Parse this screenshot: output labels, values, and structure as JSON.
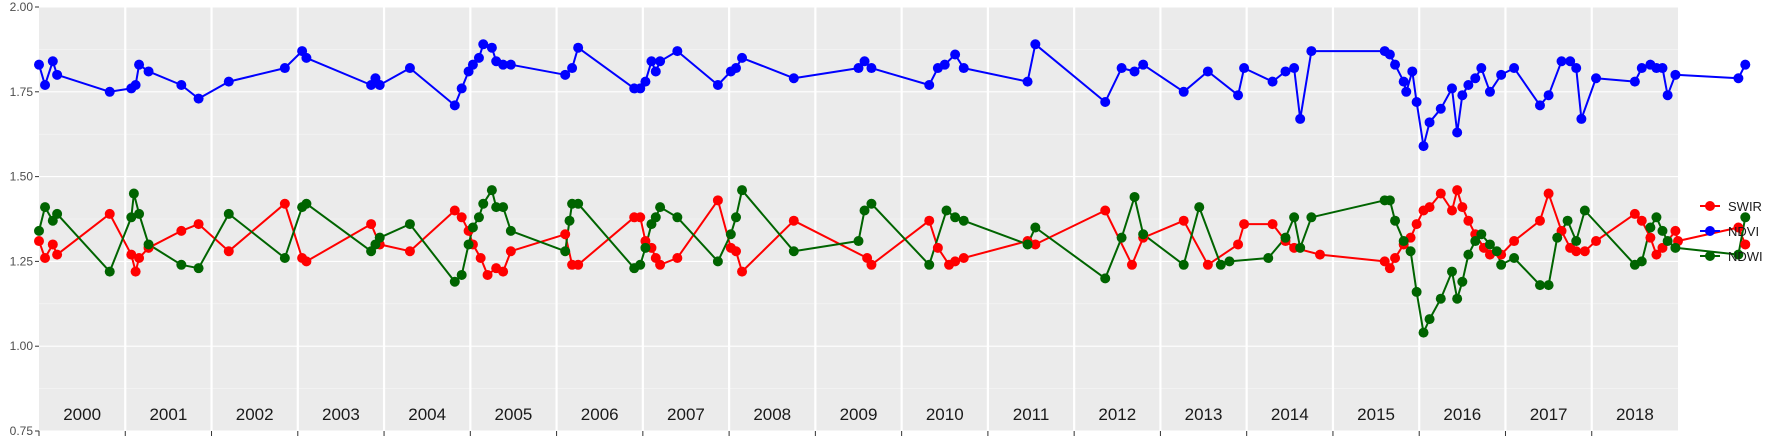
{
  "chart_data": {
    "type": "line",
    "title": "",
    "xlabel": "",
    "ylabel": "",
    "ylim": [
      0.75,
      2.0
    ],
    "yticks": [
      "0.75",
      "1.00",
      "1.25",
      "1.50",
      "1.75",
      "2.00"
    ],
    "xlim": [
      2000,
      2019
    ],
    "years": [
      "2000",
      "2001",
      "2002",
      "2003",
      "2004",
      "2005",
      "2006",
      "2007",
      "2008",
      "2009",
      "2010",
      "2011",
      "2012",
      "2013",
      "2014",
      "2015",
      "2016",
      "2017",
      "2018"
    ],
    "grid": true,
    "legend": "right",
    "series": [
      {
        "name": "SWIR",
        "color": "#ff0000",
        "points": [
          [
            2000.0,
            1.31
          ],
          [
            2000.07,
            1.26
          ],
          [
            2000.16,
            1.3
          ],
          [
            2000.21,
            1.27
          ],
          [
            2000.82,
            1.39
          ],
          [
            2001.07,
            1.27
          ],
          [
            2001.12,
            1.22
          ],
          [
            2001.16,
            1.26
          ],
          [
            2001.27,
            1.29
          ],
          [
            2001.65,
            1.34
          ],
          [
            2001.85,
            1.36
          ],
          [
            2002.2,
            1.28
          ],
          [
            2002.85,
            1.42
          ],
          [
            2003.05,
            1.26
          ],
          [
            2003.1,
            1.25
          ],
          [
            2003.85,
            1.36
          ],
          [
            2003.95,
            1.3
          ],
          [
            2004.3,
            1.28
          ],
          [
            2004.82,
            1.4
          ],
          [
            2004.9,
            1.38
          ],
          [
            2004.98,
            1.34
          ],
          [
            2005.03,
            1.3
          ],
          [
            2005.12,
            1.26
          ],
          [
            2005.2,
            1.21
          ],
          [
            2005.3,
            1.23
          ],
          [
            2005.38,
            1.22
          ],
          [
            2005.47,
            1.28
          ],
          [
            2006.1,
            1.33
          ],
          [
            2006.18,
            1.24
          ],
          [
            2006.25,
            1.24
          ],
          [
            2006.9,
            1.38
          ],
          [
            2006.97,
            1.38
          ],
          [
            2007.03,
            1.31
          ],
          [
            2007.1,
            1.29
          ],
          [
            2007.15,
            1.26
          ],
          [
            2007.2,
            1.24
          ],
          [
            2007.4,
            1.26
          ],
          [
            2007.87,
            1.43
          ],
          [
            2008.02,
            1.29
          ],
          [
            2008.08,
            1.28
          ],
          [
            2008.15,
            1.22
          ],
          [
            2008.75,
            1.37
          ],
          [
            2009.6,
            1.26
          ],
          [
            2009.65,
            1.24
          ],
          [
            2010.32,
            1.37
          ],
          [
            2010.42,
            1.29
          ],
          [
            2010.55,
            1.24
          ],
          [
            2010.62,
            1.25
          ],
          [
            2010.72,
            1.26
          ],
          [
            2011.46,
            1.31
          ],
          [
            2011.55,
            1.3
          ],
          [
            2012.36,
            1.4
          ],
          [
            2012.67,
            1.24
          ],
          [
            2012.8,
            1.32
          ],
          [
            2013.27,
            1.37
          ],
          [
            2013.55,
            1.24
          ],
          [
            2013.9,
            1.3
          ],
          [
            2013.97,
            1.36
          ],
          [
            2014.3,
            1.36
          ],
          [
            2014.45,
            1.31
          ],
          [
            2014.55,
            1.29
          ],
          [
            2014.85,
            1.27
          ],
          [
            2015.6,
            1.25
          ],
          [
            2015.66,
            1.23
          ],
          [
            2015.72,
            1.26
          ],
          [
            2015.82,
            1.3
          ],
          [
            2015.9,
            1.32
          ],
          [
            2015.97,
            1.36
          ],
          [
            2016.05,
            1.4
          ],
          [
            2016.12,
            1.41
          ],
          [
            2016.25,
            1.45
          ],
          [
            2016.38,
            1.4
          ],
          [
            2016.44,
            1.46
          ],
          [
            2016.5,
            1.41
          ],
          [
            2016.57,
            1.37
          ],
          [
            2016.65,
            1.33
          ],
          [
            2016.75,
            1.29
          ],
          [
            2016.82,
            1.27
          ],
          [
            2016.95,
            1.27
          ],
          [
            2017.1,
            1.31
          ],
          [
            2017.4,
            1.37
          ],
          [
            2017.5,
            1.45
          ],
          [
            2017.65,
            1.34
          ],
          [
            2017.75,
            1.29
          ],
          [
            2017.82,
            1.28
          ],
          [
            2017.92,
            1.28
          ],
          [
            2018.05,
            1.31
          ],
          [
            2018.5,
            1.39
          ],
          [
            2018.58,
            1.37
          ],
          [
            2018.68,
            1.32
          ],
          [
            2018.75,
            1.27
          ],
          [
            2018.82,
            1.29
          ],
          [
            2018.97,
            1.34
          ],
          [
            2019.0,
            1.31
          ],
          [
            2019.7,
            1.35
          ],
          [
            2019.78,
            1.3
          ]
        ]
      },
      {
        "name": "NDVI",
        "color": "#0000ff",
        "points": [
          [
            2000.0,
            1.83
          ],
          [
            2000.07,
            1.77
          ],
          [
            2000.16,
            1.84
          ],
          [
            2000.21,
            1.8
          ],
          [
            2000.82,
            1.75
          ],
          [
            2001.07,
            1.76
          ],
          [
            2001.12,
            1.77
          ],
          [
            2001.16,
            1.83
          ],
          [
            2001.27,
            1.81
          ],
          [
            2001.65,
            1.77
          ],
          [
            2001.85,
            1.73
          ],
          [
            2002.2,
            1.78
          ],
          [
            2002.85,
            1.82
          ],
          [
            2003.05,
            1.87
          ],
          [
            2003.1,
            1.85
          ],
          [
            2003.85,
            1.77
          ],
          [
            2003.9,
            1.79
          ],
          [
            2003.95,
            1.77
          ],
          [
            2004.3,
            1.82
          ],
          [
            2004.82,
            1.71
          ],
          [
            2004.9,
            1.76
          ],
          [
            2004.98,
            1.81
          ],
          [
            2005.03,
            1.83
          ],
          [
            2005.1,
            1.85
          ],
          [
            2005.15,
            1.89
          ],
          [
            2005.25,
            1.88
          ],
          [
            2005.3,
            1.84
          ],
          [
            2005.38,
            1.83
          ],
          [
            2005.47,
            1.83
          ],
          [
            2006.1,
            1.8
          ],
          [
            2006.18,
            1.82
          ],
          [
            2006.25,
            1.88
          ],
          [
            2006.9,
            1.76
          ],
          [
            2006.97,
            1.76
          ],
          [
            2007.03,
            1.78
          ],
          [
            2007.1,
            1.84
          ],
          [
            2007.15,
            1.81
          ],
          [
            2007.2,
            1.84
          ],
          [
            2007.4,
            1.87
          ],
          [
            2007.87,
            1.77
          ],
          [
            2008.02,
            1.81
          ],
          [
            2008.08,
            1.82
          ],
          [
            2008.15,
            1.85
          ],
          [
            2008.75,
            1.79
          ],
          [
            2009.5,
            1.82
          ],
          [
            2009.57,
            1.84
          ],
          [
            2009.65,
            1.82
          ],
          [
            2010.32,
            1.77
          ],
          [
            2010.42,
            1.82
          ],
          [
            2010.5,
            1.83
          ],
          [
            2010.62,
            1.86
          ],
          [
            2010.72,
            1.82
          ],
          [
            2011.46,
            1.78
          ],
          [
            2011.55,
            1.89
          ],
          [
            2012.36,
            1.72
          ],
          [
            2012.55,
            1.82
          ],
          [
            2012.7,
            1.81
          ],
          [
            2012.8,
            1.83
          ],
          [
            2013.27,
            1.75
          ],
          [
            2013.55,
            1.81
          ],
          [
            2013.9,
            1.74
          ],
          [
            2013.97,
            1.82
          ],
          [
            2014.3,
            1.78
          ],
          [
            2014.45,
            1.81
          ],
          [
            2014.55,
            1.82
          ],
          [
            2014.62,
            1.67
          ],
          [
            2014.75,
            1.87
          ],
          [
            2015.6,
            1.87
          ],
          [
            2015.66,
            1.86
          ],
          [
            2015.72,
            1.83
          ],
          [
            2015.82,
            1.78
          ],
          [
            2015.85,
            1.75
          ],
          [
            2015.92,
            1.81
          ],
          [
            2015.97,
            1.72
          ],
          [
            2016.05,
            1.59
          ],
          [
            2016.12,
            1.66
          ],
          [
            2016.25,
            1.7
          ],
          [
            2016.38,
            1.76
          ],
          [
            2016.44,
            1.63
          ],
          [
            2016.5,
            1.74
          ],
          [
            2016.57,
            1.77
          ],
          [
            2016.65,
            1.79
          ],
          [
            2016.72,
            1.82
          ],
          [
            2016.82,
            1.75
          ],
          [
            2016.95,
            1.8
          ],
          [
            2017.1,
            1.82
          ],
          [
            2017.4,
            1.71
          ],
          [
            2017.5,
            1.74
          ],
          [
            2017.65,
            1.84
          ],
          [
            2017.75,
            1.84
          ],
          [
            2017.82,
            1.82
          ],
          [
            2017.88,
            1.67
          ],
          [
            2018.05,
            1.79
          ],
          [
            2018.5,
            1.78
          ],
          [
            2018.58,
            1.82
          ],
          [
            2018.68,
            1.83
          ],
          [
            2018.75,
            1.82
          ],
          [
            2018.82,
            1.82
          ],
          [
            2018.88,
            1.74
          ],
          [
            2018.97,
            1.8
          ],
          [
            2019.7,
            1.79
          ],
          [
            2019.78,
            1.83
          ]
        ]
      },
      {
        "name": "NDWI",
        "color": "#006400",
        "points": [
          [
            2000.0,
            1.34
          ],
          [
            2000.07,
            1.41
          ],
          [
            2000.16,
            1.37
          ],
          [
            2000.21,
            1.39
          ],
          [
            2000.82,
            1.22
          ],
          [
            2001.07,
            1.38
          ],
          [
            2001.1,
            1.45
          ],
          [
            2001.16,
            1.39
          ],
          [
            2001.27,
            1.3
          ],
          [
            2001.65,
            1.24
          ],
          [
            2001.85,
            1.23
          ],
          [
            2002.2,
            1.39
          ],
          [
            2002.85,
            1.26
          ],
          [
            2003.05,
            1.41
          ],
          [
            2003.1,
            1.42
          ],
          [
            2003.85,
            1.28
          ],
          [
            2003.9,
            1.3
          ],
          [
            2003.95,
            1.32
          ],
          [
            2004.3,
            1.36
          ],
          [
            2004.82,
            1.19
          ],
          [
            2004.9,
            1.21
          ],
          [
            2004.98,
            1.3
          ],
          [
            2005.03,
            1.35
          ],
          [
            2005.1,
            1.38
          ],
          [
            2005.15,
            1.42
          ],
          [
            2005.25,
            1.46
          ],
          [
            2005.3,
            1.41
          ],
          [
            2005.38,
            1.41
          ],
          [
            2005.47,
            1.34
          ],
          [
            2006.1,
            1.28
          ],
          [
            2006.15,
            1.37
          ],
          [
            2006.18,
            1.42
          ],
          [
            2006.25,
            1.42
          ],
          [
            2006.9,
            1.23
          ],
          [
            2006.97,
            1.24
          ],
          [
            2007.03,
            1.29
          ],
          [
            2007.1,
            1.36
          ],
          [
            2007.15,
            1.38
          ],
          [
            2007.2,
            1.41
          ],
          [
            2007.4,
            1.38
          ],
          [
            2007.87,
            1.25
          ],
          [
            2008.02,
            1.33
          ],
          [
            2008.08,
            1.38
          ],
          [
            2008.15,
            1.46
          ],
          [
            2008.75,
            1.28
          ],
          [
            2009.5,
            1.31
          ],
          [
            2009.57,
            1.4
          ],
          [
            2009.65,
            1.42
          ],
          [
            2010.32,
            1.24
          ],
          [
            2010.52,
            1.4
          ],
          [
            2010.62,
            1.38
          ],
          [
            2010.72,
            1.37
          ],
          [
            2011.46,
            1.3
          ],
          [
            2011.55,
            1.35
          ],
          [
            2012.36,
            1.2
          ],
          [
            2012.55,
            1.32
          ],
          [
            2012.7,
            1.44
          ],
          [
            2012.8,
            1.33
          ],
          [
            2013.27,
            1.24
          ],
          [
            2013.45,
            1.41
          ],
          [
            2013.7,
            1.24
          ],
          [
            2013.8,
            1.25
          ],
          [
            2014.25,
            1.26
          ],
          [
            2014.45,
            1.32
          ],
          [
            2014.55,
            1.38
          ],
          [
            2014.62,
            1.29
          ],
          [
            2014.75,
            1.38
          ],
          [
            2015.6,
            1.43
          ],
          [
            2015.66,
            1.43
          ],
          [
            2015.72,
            1.37
          ],
          [
            2015.82,
            1.31
          ],
          [
            2015.9,
            1.28
          ],
          [
            2015.97,
            1.16
          ],
          [
            2016.05,
            1.04
          ],
          [
            2016.12,
            1.08
          ],
          [
            2016.25,
            1.14
          ],
          [
            2016.38,
            1.22
          ],
          [
            2016.44,
            1.14
          ],
          [
            2016.5,
            1.19
          ],
          [
            2016.57,
            1.27
          ],
          [
            2016.65,
            1.31
          ],
          [
            2016.72,
            1.33
          ],
          [
            2016.82,
            1.3
          ],
          [
            2016.9,
            1.28
          ],
          [
            2016.95,
            1.24
          ],
          [
            2017.1,
            1.26
          ],
          [
            2017.4,
            1.18
          ],
          [
            2017.5,
            1.18
          ],
          [
            2017.6,
            1.32
          ],
          [
            2017.72,
            1.37
          ],
          [
            2017.82,
            1.31
          ],
          [
            2017.92,
            1.4
          ],
          [
            2018.5,
            1.24
          ],
          [
            2018.58,
            1.25
          ],
          [
            2018.68,
            1.35
          ],
          [
            2018.75,
            1.38
          ],
          [
            2018.82,
            1.34
          ],
          [
            2018.88,
            1.31
          ],
          [
            2018.97,
            1.29
          ],
          [
            2019.7,
            1.27
          ],
          [
            2019.78,
            1.38
          ]
        ]
      }
    ]
  }
}
